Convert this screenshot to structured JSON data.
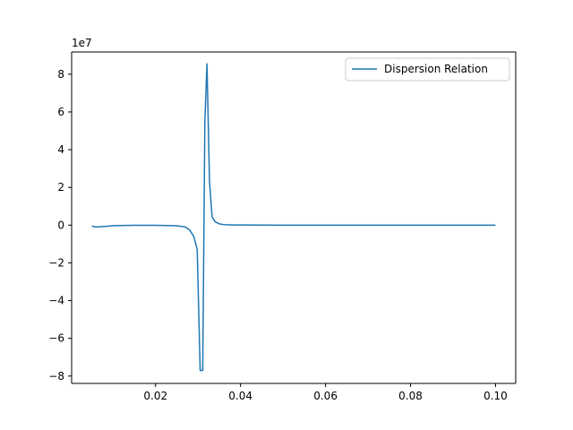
{
  "chart_data": {
    "type": "line",
    "title": "",
    "xlabel": "",
    "ylabel": "",
    "y_offset_label": "1e7",
    "xlim": [
      0.00025,
      0.10475
    ],
    "ylim": [
      -8.39,
      9.18
    ],
    "x_ticks": [
      0.02,
      0.04,
      0.06,
      0.08,
      0.1
    ],
    "x_tick_labels": [
      "0.02",
      "0.04",
      "0.06",
      "0.08",
      "0.10"
    ],
    "y_ticks": [
      -8,
      -6,
      -4,
      -2,
      0,
      2,
      4,
      6,
      8
    ],
    "y_tick_labels": [
      "−8",
      "−6",
      "−4",
      "−2",
      "0",
      "2",
      "4",
      "6",
      "8"
    ],
    "grid": false,
    "legend_position": "top-right",
    "series": [
      {
        "name": "Dispersion Relation",
        "color": "#1f77b4",
        "x": [
          0.005,
          0.006,
          0.008,
          0.01,
          0.015,
          0.02,
          0.025,
          0.027,
          0.028,
          0.029,
          0.0298,
          0.0305,
          0.0311,
          0.0316,
          0.0321,
          0.0327,
          0.0333,
          0.034,
          0.035,
          0.036,
          0.038,
          0.04,
          0.05,
          0.06,
          0.07,
          0.08,
          0.09,
          0.1
        ],
        "y": [
          -0.05,
          -0.1,
          -0.07,
          -0.03,
          -0.01,
          -0.01,
          -0.03,
          -0.1,
          -0.25,
          -0.6,
          -1.3,
          -7.7,
          -7.7,
          5.5,
          8.55,
          2.3,
          0.45,
          0.18,
          0.07,
          0.03,
          0.01,
          0.01,
          0.0,
          0.0,
          0.0,
          0.0,
          0.0,
          0.0
        ]
      }
    ]
  }
}
